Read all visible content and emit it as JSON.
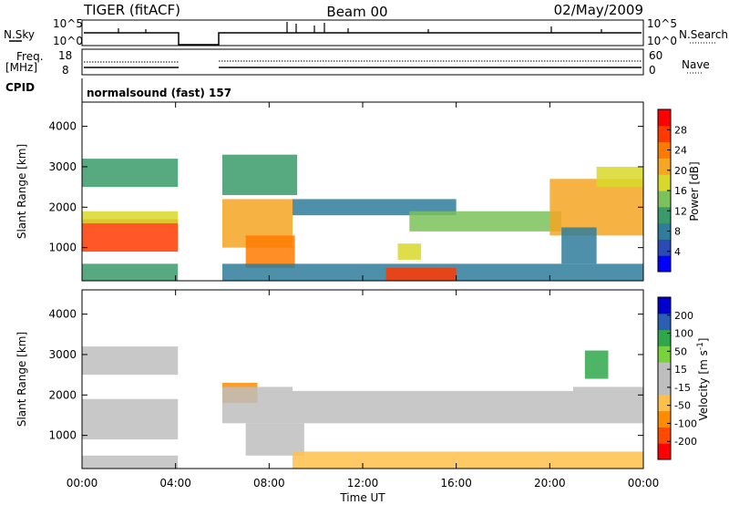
{
  "header": {
    "station": "TIGER (fitACF)",
    "beam": "Beam 00",
    "date": "02/May/2009"
  },
  "top_panels": {
    "nsky_label": "N.Sky",
    "nsearch_label": "N.Search",
    "freq_label": "Freq.",
    "freq_unit": "[MHz]",
    "nave_label": "Nave",
    "cpid_label": "CPID",
    "cpid_value": "normalsound (fast) 157",
    "noise_ticks": [
      "10^5",
      "10^0"
    ],
    "freq_ticks": [
      "18",
      "8"
    ],
    "nave_ticks": [
      "60",
      "0"
    ]
  },
  "colors": {
    "power": [
      "#0000ff",
      "#2a4bb4",
      "#2f7d9a",
      "#3a9a6a",
      "#7bc25a",
      "#d8d82a",
      "#f5a623",
      "#ff7a00",
      "#ff3a00",
      "#ff0000"
    ],
    "velocity": [
      "#ff0000",
      "#ff4a00",
      "#ff8c00",
      "#ffbf4a",
      "#bebebe",
      "#bebebe",
      "#78d23c",
      "#2ea84a",
      "#2a5fb4",
      "#0000cc"
    ]
  },
  "chart_data": [
    {
      "type": "heatmap",
      "ylabel": "Slant Range [km]",
      "ylim": [
        180,
        4600
      ],
      "xlim": [
        0,
        24
      ],
      "yticks": [
        "1000",
        "2000",
        "3000",
        "4000"
      ],
      "colorbar": {
        "label": "Power [dB]",
        "ticks": [
          "4",
          "8",
          "12",
          "16",
          "20",
          "24",
          "28"
        ],
        "range": [
          0,
          32
        ]
      },
      "regions": [
        {
          "t0": 0.0,
          "t1": 4.1,
          "r0": 900,
          "r1": 1700,
          "level": 26
        },
        {
          "t0": 0.0,
          "t1": 4.1,
          "r0": 1600,
          "r1": 1900,
          "level": 16
        },
        {
          "t0": 0.0,
          "t1": 4.1,
          "r0": 2500,
          "r1": 3200,
          "level": 10
        },
        {
          "t0": 0.0,
          "t1": 4.1,
          "r0": 180,
          "r1": 600,
          "level": 12
        },
        {
          "t0": 6.0,
          "t1": 9.0,
          "r0": 1000,
          "r1": 2200,
          "level": 22
        },
        {
          "t0": 7.0,
          "t1": 9.1,
          "r0": 500,
          "r1": 1300,
          "level": 24
        },
        {
          "t0": 6.0,
          "t1": 9.2,
          "r0": 2300,
          "r1": 3300,
          "level": 12
        },
        {
          "t0": 9.0,
          "t1": 16.0,
          "r0": 1800,
          "r1": 2200,
          "level": 8
        },
        {
          "t0": 14.0,
          "t1": 20.5,
          "r0": 1400,
          "r1": 1900,
          "level": 14
        },
        {
          "t0": 13.5,
          "t1": 14.5,
          "r0": 700,
          "r1": 1100,
          "level": 18
        },
        {
          "t0": 20.0,
          "t1": 24.0,
          "r0": 1300,
          "r1": 2700,
          "level": 22
        },
        {
          "t0": 20.5,
          "t1": 22.0,
          "r0": 600,
          "r1": 1500,
          "level": 8
        },
        {
          "t0": 22.0,
          "t1": 24.0,
          "r0": 2500,
          "r1": 3000,
          "level": 18
        },
        {
          "t0": 6.0,
          "t1": 24.0,
          "r0": 180,
          "r1": 600,
          "level": 8
        },
        {
          "t0": 13.0,
          "t1": 16.0,
          "r0": 180,
          "r1": 500,
          "level": 26
        }
      ]
    },
    {
      "type": "heatmap",
      "ylabel": "Slant Range [km]",
      "xlabel": "Time UT",
      "ylim": [
        180,
        4600
      ],
      "xlim": [
        0,
        24
      ],
      "yticks": [
        "1000",
        "2000",
        "3000",
        "4000"
      ],
      "xticks": [
        "00:00",
        "04:00",
        "08:00",
        "12:00",
        "16:00",
        "20:00",
        "00:00"
      ],
      "colorbar": {
        "label": "Velocity [m s",
        "label_exp": "-1",
        "label_end": "]",
        "ticks": [
          "-200",
          "-100",
          "-50",
          "-15",
          "15",
          "50",
          "100",
          "200"
        ],
        "range": [
          -250,
          250
        ]
      },
      "regions": [
        {
          "t0": 0.0,
          "t1": 4.1,
          "r0": 900,
          "r1": 1900,
          "level": 0
        },
        {
          "t0": 0.0,
          "t1": 4.1,
          "r0": 2500,
          "r1": 3200,
          "level": 0
        },
        {
          "t0": 0.0,
          "t1": 4.1,
          "r0": 180,
          "r1": 500,
          "level": 30
        },
        {
          "t0": 6.0,
          "t1": 7.5,
          "r0": 1800,
          "r1": 2300,
          "level": -150
        },
        {
          "t0": 6.0,
          "t1": 9.0,
          "r0": 1300,
          "r1": 2200,
          "level": 0
        },
        {
          "t0": 7.0,
          "t1": 9.5,
          "r0": 500,
          "r1": 1300,
          "level": 40
        },
        {
          "t0": 9.0,
          "t1": 21.0,
          "r0": 1300,
          "r1": 2100,
          "level": 0
        },
        {
          "t0": 9.0,
          "t1": 24.0,
          "r0": 180,
          "r1": 600,
          "level": -60
        },
        {
          "t0": 21.0,
          "t1": 24.0,
          "r0": 1300,
          "r1": 2200,
          "level": 0
        },
        {
          "t0": 21.5,
          "t1": 22.5,
          "r0": 2400,
          "r1": 3100,
          "level": 120
        }
      ]
    }
  ]
}
